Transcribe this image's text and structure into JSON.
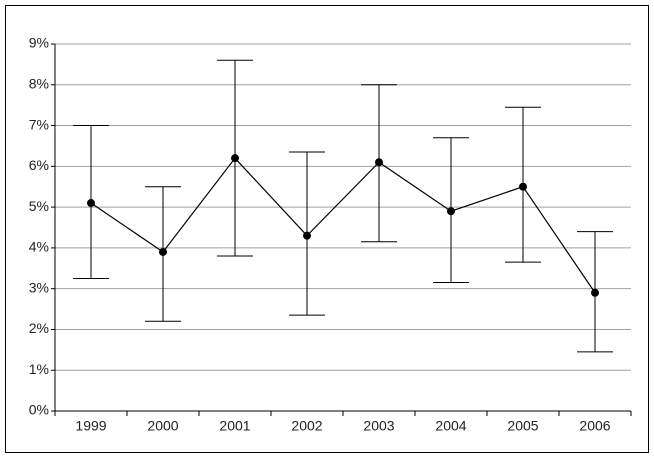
{
  "chart_data": {
    "type": "line-errorbar",
    "categories": [
      "1999",
      "2000",
      "2001",
      "2002",
      "2003",
      "2004",
      "2005",
      "2006"
    ],
    "values": [
      5.1,
      3.9,
      6.2,
      4.3,
      6.1,
      4.9,
      5.5,
      2.9
    ],
    "lower": [
      3.25,
      2.2,
      3.8,
      2.35,
      4.15,
      3.15,
      3.65,
      1.45
    ],
    "upper": [
      7.0,
      5.5,
      8.6,
      6.35,
      8.0,
      6.7,
      7.45,
      4.4
    ],
    "color": "#000000",
    "ylim": [
      0,
      9
    ],
    "yticks": [
      {
        "value": 0,
        "label": "0%"
      },
      {
        "value": 1,
        "label": "1%"
      },
      {
        "value": 2,
        "label": "2%"
      },
      {
        "value": 3,
        "label": "3%"
      },
      {
        "value": 4,
        "label": "4%"
      },
      {
        "value": 5,
        "label": "5%"
      },
      {
        "value": 6,
        "label": "6%"
      },
      {
        "value": 7,
        "label": "7%"
      },
      {
        "value": 8,
        "label": "8%"
      },
      {
        "value": 9,
        "label": "9%"
      }
    ],
    "grid": true
  }
}
